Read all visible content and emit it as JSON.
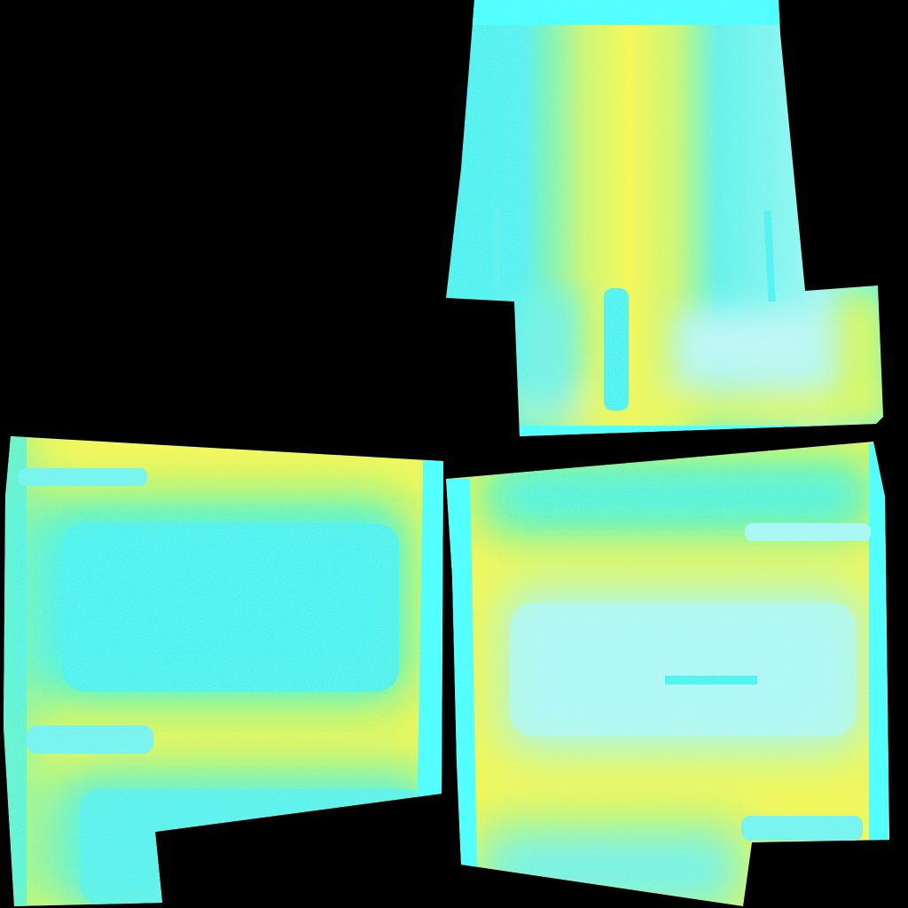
{
  "image": {
    "kind": "uv texture map",
    "background": "#000000"
  },
  "palette": {
    "cyan": "#14f2f0",
    "pale_cyan": "#9ff7f4",
    "yellow": "#f4f72a",
    "edge_cyan": "#00ffff"
  },
  "panels": [
    {
      "name": "top-right-panel",
      "shape": "pant-leg front with notch on right"
    },
    {
      "name": "bottom-left-panel",
      "shape": "pant-leg back with notch on lower right"
    },
    {
      "name": "bottom-right-panel",
      "shape": "pant-leg back with notch on lower left"
    }
  ]
}
